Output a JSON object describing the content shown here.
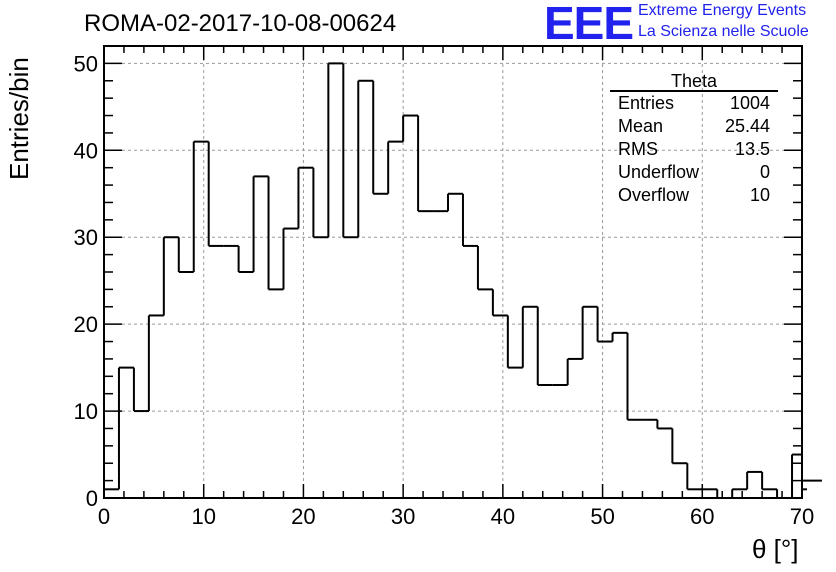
{
  "header": {
    "title": "ROMA-02-2017-10-08-00624"
  },
  "logo": {
    "mark": "EEE",
    "line1": "Extreme Energy Events",
    "line2": "La Scienza nelle Scuole",
    "color": "#2222ee"
  },
  "stats_box": {
    "title": "Theta",
    "rows": [
      {
        "label": "Entries",
        "value": "1004"
      },
      {
        "label": "Mean",
        "value": "25.44"
      },
      {
        "label": "RMS",
        "value": "13.5"
      },
      {
        "label": "Underflow",
        "value": "0"
      },
      {
        "label": "Overflow",
        "value": "10"
      }
    ]
  },
  "chart_data": {
    "type": "bar",
    "title": "ROMA-02-2017-10-08-00624",
    "xlabel": "θ [°]",
    "ylabel": "Entries/bin",
    "xlim": [
      0,
      70
    ],
    "ylim": [
      0,
      52
    ],
    "bin_width": 1.5,
    "x_ticks": [
      0,
      10,
      20,
      30,
      40,
      50,
      60,
      70
    ],
    "y_ticks": [
      0,
      10,
      20,
      30,
      40,
      50
    ],
    "grid": true,
    "legend": "top-right",
    "bin_edges_start": 0,
    "values": [
      1,
      15,
      10,
      21,
      30,
      26,
      41,
      29,
      29,
      26,
      37,
      24,
      31,
      38,
      30,
      50,
      30,
      48,
      35,
      41,
      44,
      33,
      33,
      35,
      29,
      24,
      21,
      15,
      22,
      13,
      13,
      16,
      22,
      18,
      19,
      9,
      9,
      8,
      4,
      1,
      1,
      0,
      1,
      3,
      1,
      0,
      5,
      1,
      2
    ],
    "line_color": "#000000"
  }
}
